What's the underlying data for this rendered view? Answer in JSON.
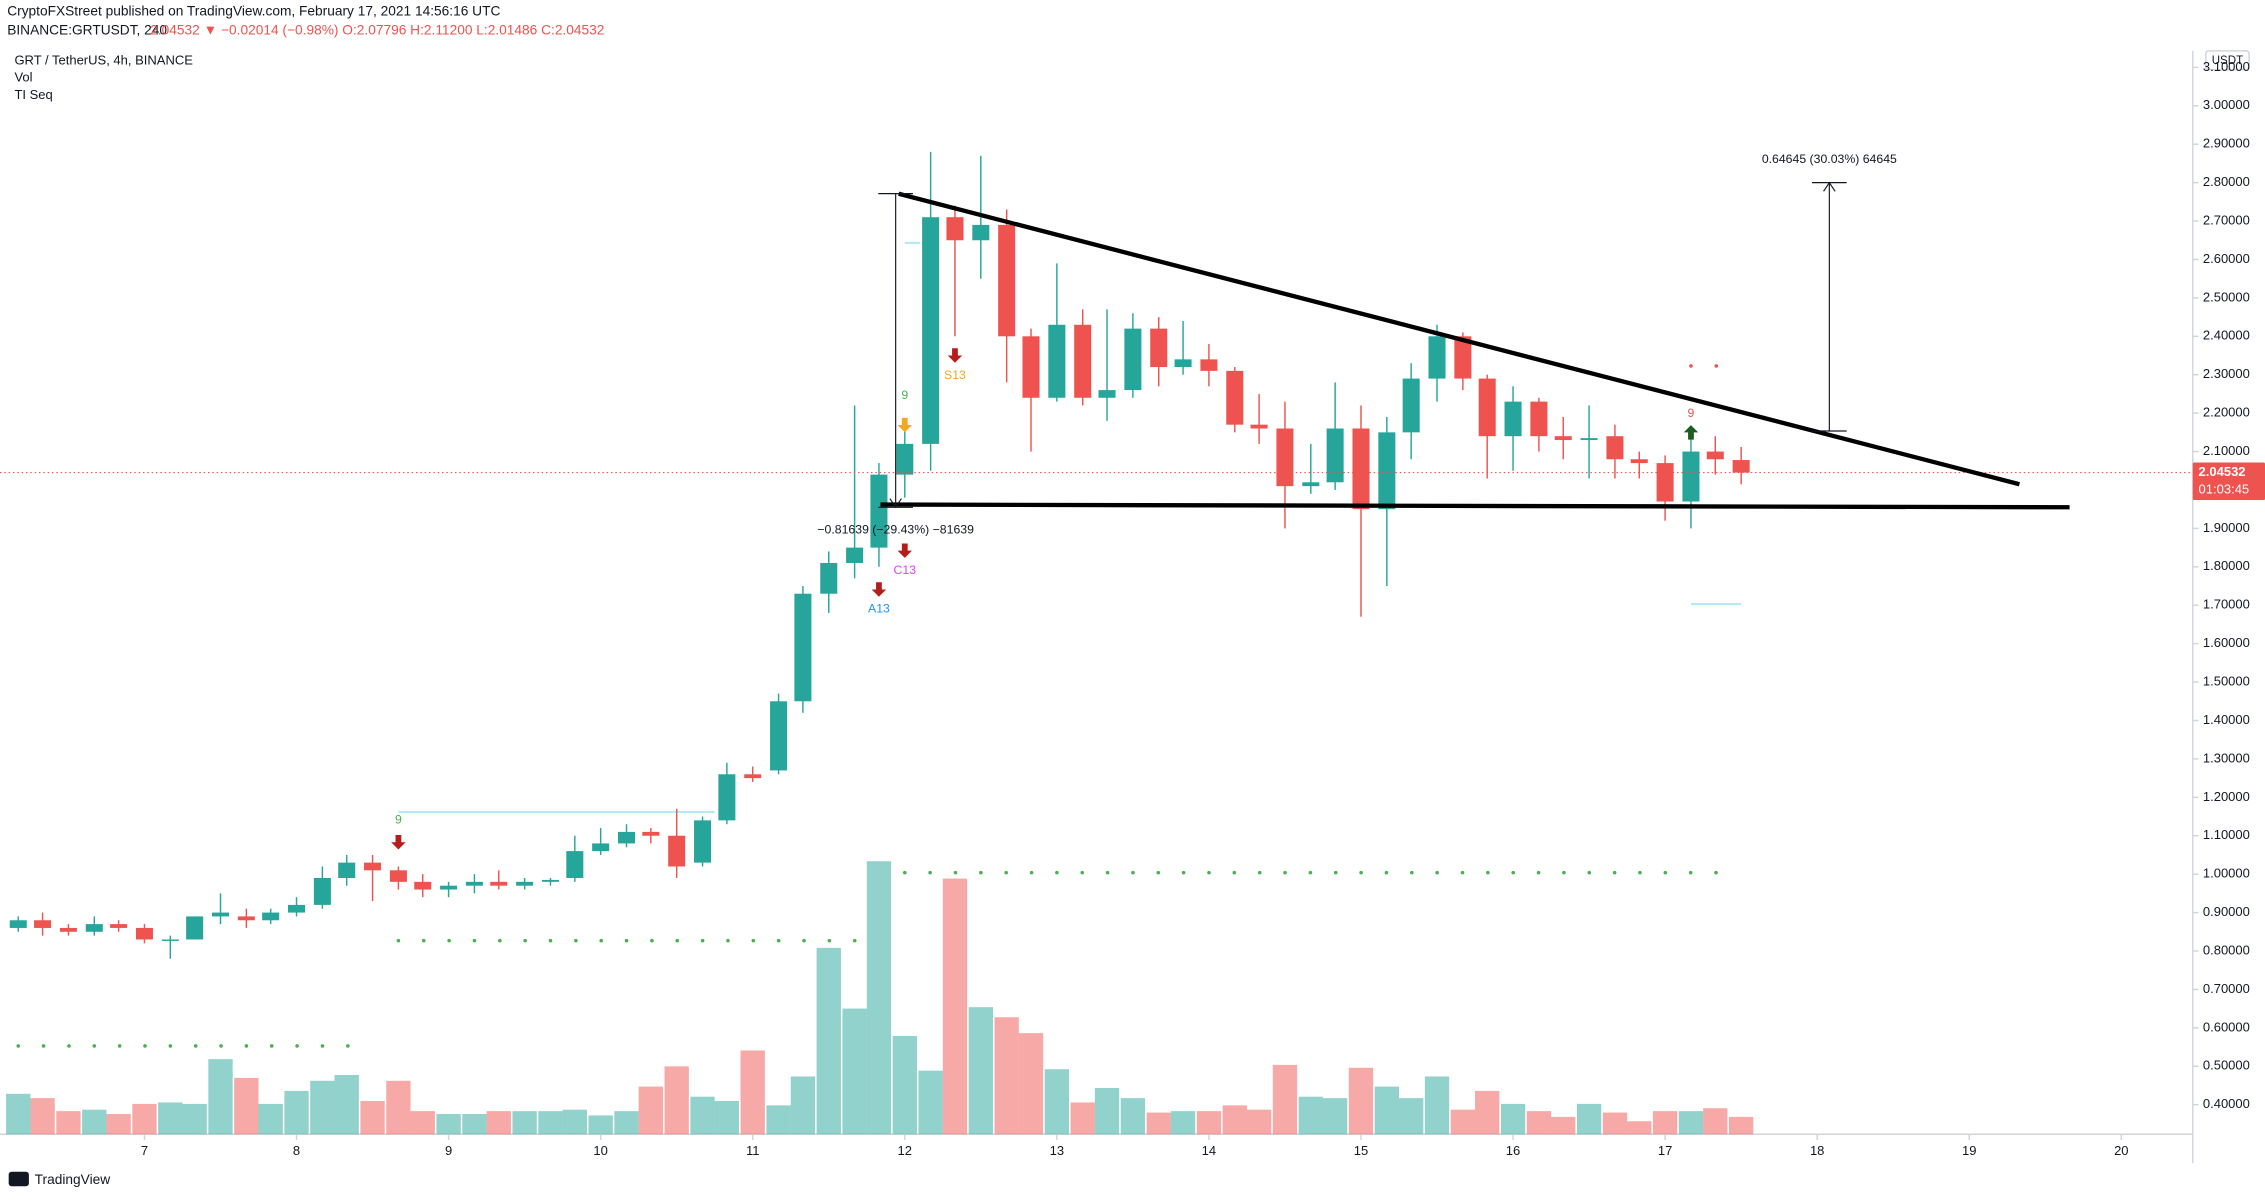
{
  "header": {
    "published": "CryptoFXStreet published on TradingView.com, February 17, 2021 14:56:16 UTC",
    "symbol": "BINANCE:GRTUSDT, 240",
    "quote": "2.04532 ▼ −0.02014 (−0.98%) O:2.07796 H:2.11200 L:2.01486 C:2.04532",
    "legend": [
      "GRT / TetherUS, 4h, BINANCE",
      "Vol",
      "TI Seq"
    ],
    "currency": "USDT",
    "countdown": "01:03:45",
    "footer": "TradingView"
  },
  "chart_data": {
    "type": "candlestick",
    "x": [
      6.17,
      6.33,
      6.5,
      6.67,
      6.83,
      7,
      7.17,
      7.33,
      7.5,
      7.67,
      7.83,
      8,
      8.17,
      8.33,
      8.5,
      8.67,
      8.83,
      9,
      9.17,
      9.33,
      9.5,
      9.67,
      9.83,
      10,
      10.17,
      10.33,
      10.5,
      10.67,
      10.83,
      11,
      11.17,
      11.33,
      11.5,
      11.67,
      11.83,
      12,
      12.17,
      12.33,
      12.5,
      12.67,
      12.83,
      13,
      13.17,
      13.33,
      13.5,
      13.67,
      13.83,
      14,
      14.17,
      14.33,
      14.5,
      14.67,
      14.83,
      15,
      15.17,
      15.33,
      15.5,
      15.67,
      15.83,
      16,
      16.17,
      16.33,
      16.5,
      16.67,
      16.83,
      17,
      17.17,
      17.33,
      17.5
    ],
    "open": [
      0.86,
      0.88,
      0.86,
      0.85,
      0.87,
      0.86,
      0.83,
      0.83,
      0.89,
      0.89,
      0.88,
      0.9,
      0.92,
      0.99,
      1.03,
      1.01,
      0.98,
      0.96,
      0.97,
      0.98,
      0.97,
      0.98,
      0.99,
      1.06,
      1.08,
      1.11,
      1.1,
      1.03,
      1.14,
      1.26,
      1.27,
      1.45,
      1.73,
      1.81,
      1.85,
      2.04,
      2.12,
      2.71,
      2.65,
      2.69,
      2.4,
      2.24,
      2.43,
      2.24,
      2.26,
      2.42,
      2.32,
      2.34,
      2.31,
      2.17,
      2.16,
      2.01,
      2.02,
      2.16,
      1.95,
      2.15,
      2.29,
      2.4,
      2.29,
      2.14,
      2.23,
      2.14,
      2.13,
      2.14,
      2.08,
      2.07,
      1.97,
      2.1,
      2.07796
    ],
    "high": [
      0.89,
      0.9,
      0.87,
      0.89,
      0.88,
      0.87,
      0.84,
      0.89,
      0.95,
      0.91,
      0.91,
      0.94,
      1.02,
      1.05,
      1.05,
      1.02,
      1.0,
      0.98,
      1.0,
      1.01,
      0.99,
      0.99,
      1.1,
      1.12,
      1.13,
      1.12,
      1.17,
      1.15,
      1.29,
      1.28,
      1.47,
      1.75,
      1.84,
      2.22,
      2.07,
      2.18,
      2.88,
      2.74,
      2.87,
      2.73,
      2.42,
      2.59,
      2.47,
      2.47,
      2.46,
      2.45,
      2.44,
      2.38,
      2.32,
      2.25,
      2.23,
      2.12,
      2.28,
      2.22,
      2.19,
      2.33,
      2.43,
      2.41,
      2.3,
      2.27,
      2.24,
      2.19,
      2.22,
      2.17,
      2.1,
      2.09,
      2.14,
      2.14,
      2.112
    ],
    "low": [
      0.85,
      0.84,
      0.84,
      0.84,
      0.85,
      0.82,
      0.78,
      0.83,
      0.87,
      0.86,
      0.87,
      0.89,
      0.91,
      0.97,
      0.93,
      0.96,
      0.94,
      0.94,
      0.95,
      0.96,
      0.96,
      0.97,
      0.98,
      1.05,
      1.07,
      1.08,
      0.99,
      1.02,
      1.13,
      1.24,
      1.26,
      1.42,
      1.68,
      1.77,
      1.8,
      1.98,
      2.05,
      2.4,
      2.55,
      2.28,
      2.1,
      2.23,
      2.22,
      2.18,
      2.24,
      2.27,
      2.3,
      2.27,
      2.15,
      2.12,
      1.9,
      1.99,
      2.0,
      1.67,
      1.75,
      2.08,
      2.23,
      2.26,
      2.03,
      2.05,
      2.1,
      2.08,
      2.03,
      2.03,
      2.03,
      1.92,
      1.9,
      2.04,
      2.01486
    ],
    "close": [
      0.88,
      0.86,
      0.85,
      0.87,
      0.86,
      0.83,
      0.83,
      0.89,
      0.9,
      0.88,
      0.9,
      0.92,
      0.99,
      1.03,
      1.01,
      0.98,
      0.96,
      0.97,
      0.98,
      0.97,
      0.98,
      0.985,
      1.06,
      1.08,
      1.11,
      1.1,
      1.02,
      1.14,
      1.26,
      1.25,
      1.45,
      1.73,
      1.81,
      1.85,
      2.04,
      2.12,
      2.71,
      2.65,
      2.69,
      2.4,
      2.24,
      2.43,
      2.24,
      2.26,
      2.42,
      2.32,
      2.34,
      2.31,
      2.17,
      2.16,
      2.01,
      2.02,
      2.16,
      1.95,
      2.15,
      2.29,
      2.4,
      2.29,
      2.14,
      2.23,
      2.14,
      2.13,
      2.135,
      2.08,
      2.07,
      1.97,
      2.1,
      2.08,
      2.04532
    ],
    "up_color": "#26a69a",
    "down_color": "#ef5350",
    "volume": {
      "values": [
        28,
        25,
        16,
        17,
        14,
        21,
        22,
        21,
        52,
        39,
        21,
        30,
        37,
        41,
        23,
        37,
        16,
        14,
        14,
        16,
        16,
        16,
        17,
        13,
        16,
        33,
        47,
        26,
        23,
        58,
        20,
        40,
        129,
        87,
        189,
        68,
        44,
        177,
        88,
        81,
        70,
        45,
        22,
        32,
        25,
        15,
        16,
        16,
        20,
        17,
        48,
        26,
        25,
        46,
        33,
        25,
        40,
        17,
        30,
        21,
        16,
        12,
        21,
        15,
        9,
        16,
        16,
        18,
        12
      ],
      "ylim": [
        0,
        750
      ]
    },
    "xlim": [
      6.05,
      20.47
    ],
    "xticks": [
      7,
      8,
      9,
      10,
      11,
      12,
      13,
      14,
      15,
      16,
      17,
      18,
      19,
      20
    ],
    "ylim": [
      0.323,
      3.143
    ],
    "yticks": [
      {
        "value": 0.4,
        "label": "0.40000"
      },
      {
        "value": 0.5,
        "label": "0.50000"
      },
      {
        "value": 0.6,
        "label": "0.60000"
      },
      {
        "value": 0.7,
        "label": "0.70000"
      },
      {
        "value": 0.8,
        "label": "0.80000"
      },
      {
        "value": 0.9,
        "label": "0.90000"
      },
      {
        "value": 1.0,
        "label": "1.00000"
      },
      {
        "value": 1.1,
        "label": "1.10000"
      },
      {
        "value": 1.2,
        "label": "1.20000"
      },
      {
        "value": 1.3,
        "label": "1.30000"
      },
      {
        "value": 1.4,
        "label": "1.40000"
      },
      {
        "value": 1.5,
        "label": "1.50000"
      },
      {
        "value": 1.6,
        "label": "1.60000"
      },
      {
        "value": 1.7,
        "label": "1.70000"
      },
      {
        "value": 1.8,
        "label": "1.80000"
      },
      {
        "value": 1.9,
        "label": "1.90000"
      },
      {
        "value": 2.1,
        "label": "2.10000"
      },
      {
        "value": 2.2,
        "label": "2.20000"
      },
      {
        "value": 2.3,
        "label": "2.30000"
      },
      {
        "value": 2.4,
        "label": "2.40000"
      },
      {
        "value": 2.5,
        "label": "2.50000"
      },
      {
        "value": 2.6,
        "label": "2.60000"
      },
      {
        "value": 2.7,
        "label": "2.70000"
      },
      {
        "value": 2.8,
        "label": "2.80000"
      },
      {
        "value": 2.9,
        "label": "2.90000"
      },
      {
        "value": 3.0,
        "label": "3.00000"
      },
      {
        "value": 3.1,
        "label": "3.10000"
      }
    ],
    "grid": false,
    "last_price": 2.04532,
    "last_color": "#ef5350",
    "levels": [
      {
        "x": [
          6.17,
          8.5
        ],
        "value": 0.553,
        "color": "#4caf50",
        "style": "dots"
      },
      {
        "x": [
          8.67,
          11.83
        ],
        "value": 0.827,
        "color": "#4caf50",
        "style": "dots"
      },
      {
        "x": [
          12,
          17.5
        ],
        "value": 1.004,
        "color": "#4caf50",
        "style": "dots"
      },
      {
        "x": [
          17.17,
          17.5
        ],
        "value": 2.323,
        "color": "#ef5350",
        "style": "dots"
      },
      {
        "x": [
          8.67,
          10.75
        ],
        "value": 1.162,
        "color": "#b2ebf2",
        "style": "solid"
      },
      {
        "x": [
          12,
          12.1
        ],
        "value": 2.643,
        "color": "#b2ebf2",
        "style": "solid"
      },
      {
        "x": [
          17.17,
          17.5
        ],
        "value": 1.703,
        "color": "#b2ebf2",
        "style": "solid"
      }
    ],
    "trendlines": [
      {
        "points": [
          [
            11.96,
            2.771
          ],
          [
            19.33,
            2.015
          ]
        ],
        "color": "#000000"
      },
      {
        "points": [
          [
            11.84,
            1.962
          ],
          [
            19.66,
            1.955
          ]
        ],
        "color": "#000000"
      }
    ],
    "measures": [
      {
        "x": 11.94,
        "from": 2.77139,
        "to": 1.955,
        "label": "−0.81639 (−29.43%) −81639"
      },
      {
        "x": 18.08,
        "from": 2.15355,
        "to": 2.8,
        "label": "0.64645 (30.03%) 64645"
      }
    ],
    "arrows": [
      {
        "x": 12.33,
        "price": 2.35,
        "dir": "down",
        "color": "#b71c1c"
      },
      {
        "x": 12.0,
        "price": 1.842,
        "dir": "down",
        "color": "#b71c1c"
      },
      {
        "x": 11.83,
        "price": 1.741,
        "dir": "down",
        "color": "#b71c1c"
      },
      {
        "x": 8.67,
        "price": 1.083,
        "dir": "down",
        "color": "#b71c1c"
      },
      {
        "x": 12.0,
        "price": 2.169,
        "dir": "down",
        "color": "#f5a623"
      },
      {
        "x": 17.17,
        "price": 2.15,
        "dir": "up",
        "color": "#1b5e20"
      }
    ],
    "labels": [
      {
        "text": "S13",
        "x": 12.33,
        "price": 2.297,
        "color": "#f5a623"
      },
      {
        "text": "C13",
        "x": 12.0,
        "price": 1.79,
        "color": "#e040fb"
      },
      {
        "text": "A13",
        "x": 11.83,
        "price": 1.69,
        "color": "#2196f3"
      },
      {
        "text": "9",
        "x": 12.0,
        "price": 2.245,
        "color": "#4caf50"
      },
      {
        "text": "9",
        "x": 8.67,
        "price": 1.14,
        "color": "#4caf50"
      },
      {
        "text": "9",
        "x": 17.17,
        "price": 2.199,
        "color": "#ef5350"
      }
    ]
  }
}
